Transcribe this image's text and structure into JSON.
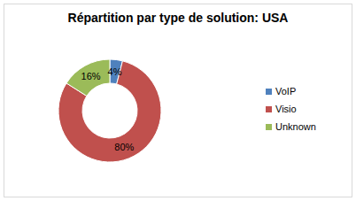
{
  "chart_data": {
    "type": "donut",
    "title": "Répartition par type de solution: USA",
    "categories": [
      "VoIP",
      "Visio",
      "Unknown"
    ],
    "values": [
      4,
      80,
      16
    ],
    "value_labels": [
      "4%",
      "80%",
      "16%"
    ],
    "colors": [
      "#4f81bd",
      "#c0504d",
      "#9bbb59"
    ],
    "data_labels": true,
    "legend": "right"
  }
}
